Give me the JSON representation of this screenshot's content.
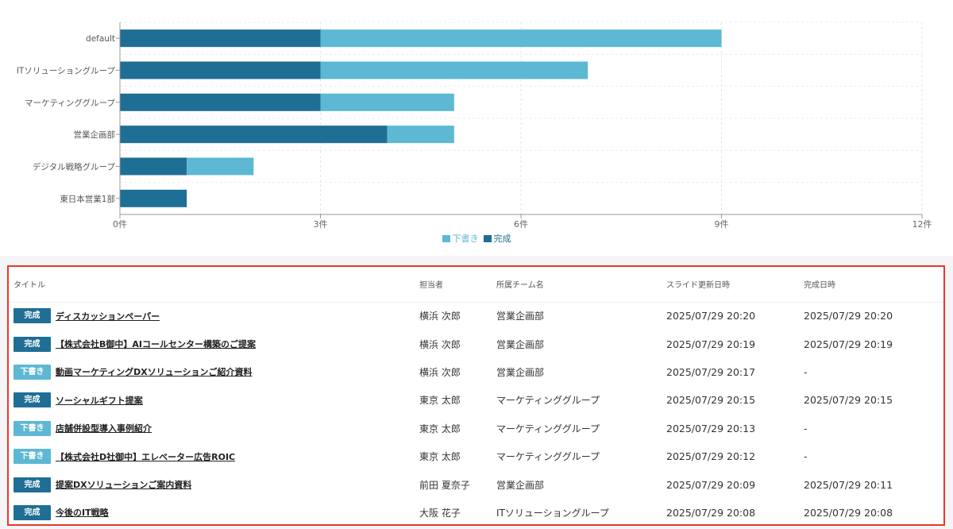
{
  "chart_data": {
    "type": "bar",
    "orientation": "horizontal",
    "stacked": true,
    "categories": [
      "default",
      "ITソリューショングループ",
      "マーケティンググループ",
      "営業企画部",
      "デジタル戦略グループ",
      "東日本営業1部"
    ],
    "series": [
      {
        "name": "完成",
        "values": [
          3,
          3,
          3,
          4,
          1,
          1
        ],
        "color": "#1f6e95"
      },
      {
        "name": "下書き",
        "values": [
          6,
          4,
          2,
          1,
          1,
          0
        ],
        "color": "#5db8d3"
      }
    ],
    "xticks": [
      "0件",
      "3件",
      "6件",
      "9件",
      "12件"
    ],
    "xlim": [
      0,
      12
    ],
    "grid": true,
    "legend": [
      "下書き",
      "完成"
    ],
    "legend_position": "bottom-center"
  },
  "table": {
    "columns": [
      "タイトル",
      "担当者",
      "所属チーム名",
      "スライド更新日時",
      "完成日時"
    ],
    "rows": [
      {
        "status": "完成",
        "status_key": "done",
        "title": "ディスカッションペーパー",
        "owner": "横浜 次郎",
        "team": "営業企画部",
        "updated": "2025/07/29 20:20",
        "completed": "2025/07/29 20:20"
      },
      {
        "status": "完成",
        "status_key": "done",
        "title": "【株式会社B御中】AIコールセンター構築のご提案",
        "owner": "横浜 次郎",
        "team": "営業企画部",
        "updated": "2025/07/29 20:19",
        "completed": "2025/07/29 20:19"
      },
      {
        "status": "下書き",
        "status_key": "draft",
        "title": "動画マーケティングDXソリューションご紹介資料",
        "owner": "横浜 次郎",
        "team": "営業企画部",
        "updated": "2025/07/29 20:17",
        "completed": "-"
      },
      {
        "status": "完成",
        "status_key": "done",
        "title": "ソーシャルギフト提案",
        "owner": "東京 太郎",
        "team": "マーケティンググループ",
        "updated": "2025/07/29 20:15",
        "completed": "2025/07/29 20:15"
      },
      {
        "status": "下書き",
        "status_key": "draft",
        "title": "店舗併設型導入事例紹介",
        "owner": "東京 太郎",
        "team": "マーケティンググループ",
        "updated": "2025/07/29 20:13",
        "completed": "-"
      },
      {
        "status": "下書き",
        "status_key": "draft",
        "title": "【株式会社D社御中】エレベーター広告ROIC",
        "owner": "東京 太郎",
        "team": "マーケティンググループ",
        "updated": "2025/07/29 20:12",
        "completed": "-"
      },
      {
        "status": "完成",
        "status_key": "done",
        "title": "提案DXソリューションご案内資料",
        "owner": "前田 夏奈子",
        "team": "営業企画部",
        "updated": "2025/07/29 20:09",
        "completed": "2025/07/29 20:11"
      },
      {
        "status": "完成",
        "status_key": "done",
        "title": "今後のIT戦略",
        "owner": "大阪 花子",
        "team": "ITソリューショングループ",
        "updated": "2025/07/29 20:08",
        "completed": "2025/07/29 20:08"
      }
    ]
  }
}
